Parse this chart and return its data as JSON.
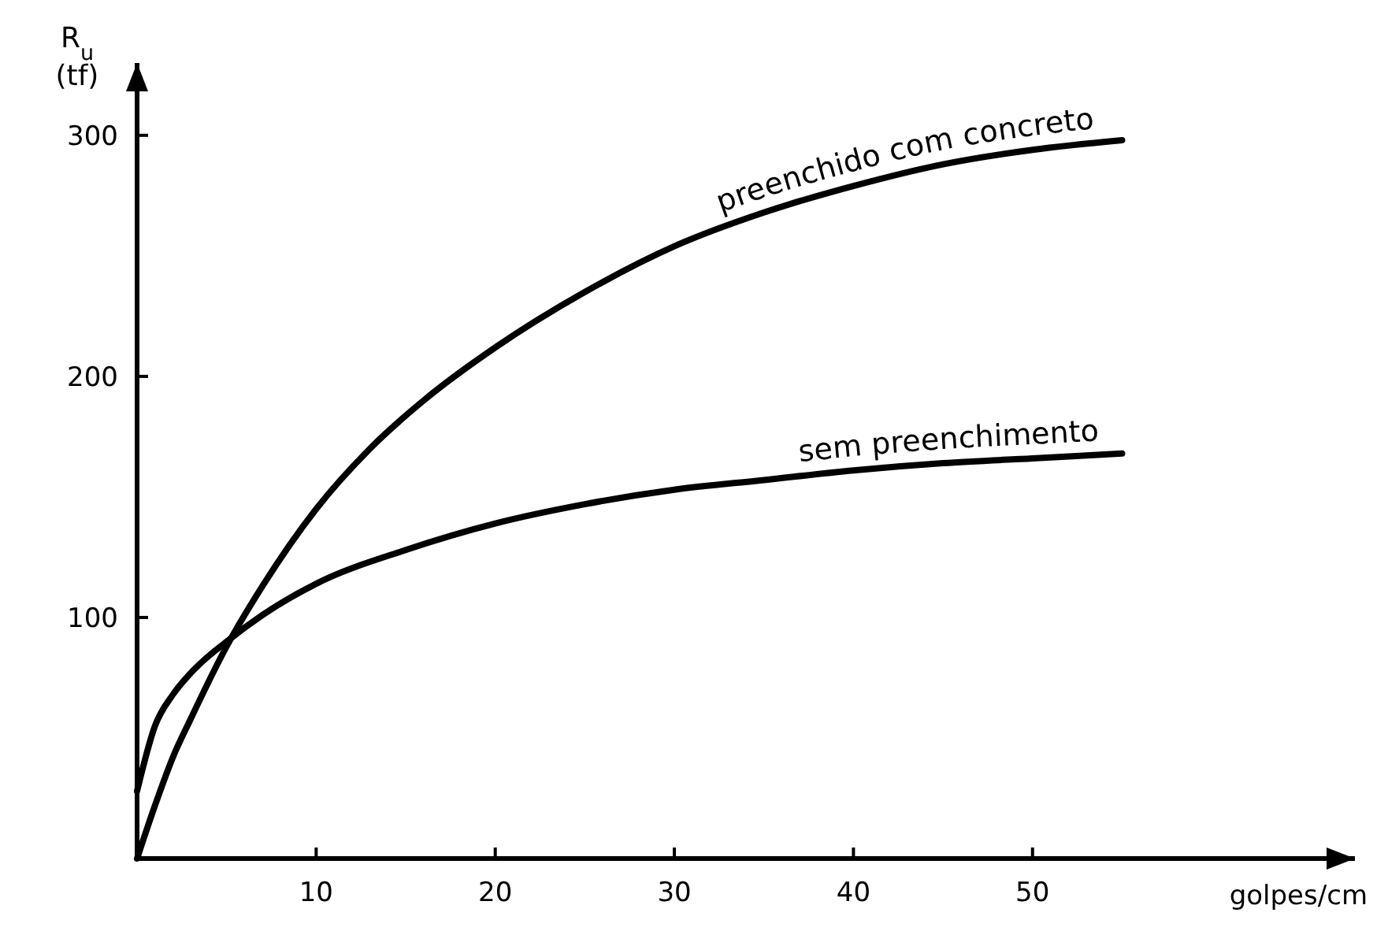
{
  "chart_data": {
    "type": "line",
    "xlabel": "golpes/cm",
    "ylabel": "R$_{u}$ (tf)",
    "xlim": [
      0,
      68
    ],
    "ylim": [
      0,
      330
    ],
    "xticks": [
      10,
      20,
      30,
      40,
      50
    ],
    "yticks": [
      100,
      200,
      300
    ],
    "grid": false,
    "marker": "none",
    "line_style": "solid",
    "series": [
      {
        "name": "preenchido com concreto",
        "color": "#000000",
        "x": [
          0,
          1,
          2,
          3,
          5,
          7,
          10,
          13,
          16,
          20,
          25,
          30,
          35,
          40,
          45,
          50,
          55
        ],
        "values": [
          0,
          22,
          42,
          58,
          88,
          113,
          145,
          170,
          190,
          212,
          235,
          254,
          268,
          279,
          288,
          294,
          298
        ]
      },
      {
        "name": "sem preenchimento",
        "color": "#000000",
        "x": [
          0,
          1,
          2,
          3,
          5,
          7,
          10,
          15,
          20,
          25,
          30,
          35,
          40,
          45,
          50,
          55
        ],
        "values": [
          28,
          55,
          68,
          77,
          90,
          101,
          114,
          128,
          139,
          147,
          153,
          157,
          161,
          164,
          166,
          168
        ]
      }
    ]
  }
}
